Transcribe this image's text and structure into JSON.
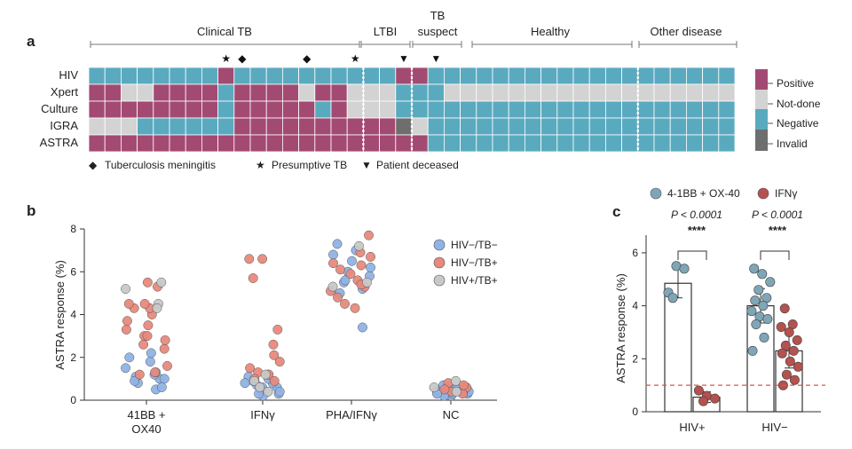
{
  "colors": {
    "positive": "#a34a73",
    "not_done": "#d3d3d3",
    "negative": "#5aaabf",
    "invalid": "#6e6e6e",
    "hivneg_tbneg": "#8fb3e6",
    "hivneg_tbpos": "#e8897c",
    "hivpos_tbpos": "#c8c8c8",
    "c_obx": "#7fa6b6",
    "c_ifn": "#b5514f",
    "threshold": "#d9574a"
  },
  "panel_a": {
    "letter": "a",
    "groups": [
      {
        "label": "Clinical TB"
      },
      {
        "label": "LTBI"
      },
      {
        "label": "TB"
      },
      {
        "label": "Healthy"
      },
      {
        "label": "Other disease"
      }
    ],
    "group_label_tb_second_line": "suspect",
    "row_labels": [
      "HIV",
      "Xpert",
      "Culture",
      "IGRA",
      "ASTRA"
    ],
    "legend": [
      {
        "key": "P",
        "label": "Positive"
      },
      {
        "key": "N",
        "label": "Not-done"
      },
      {
        "key": "G",
        "label": "Negative"
      },
      {
        "key": "I",
        "label": "Invalid"
      }
    ],
    "symbol_legend": [
      {
        "glyph": "◆",
        "label": "Tuberculosis meningitis"
      },
      {
        "glyph": "★",
        "label": "Presumptive TB"
      },
      {
        "glyph": "▼",
        "label": "Patient deceased"
      }
    ],
    "markers": [
      {
        "glyph": "★",
        "column": 8
      },
      {
        "glyph": "◆",
        "column": 9
      },
      {
        "glyph": "◆",
        "column": 13
      },
      {
        "glyph": "★",
        "column": 16
      },
      {
        "glyph": "▼",
        "column": 19
      },
      {
        "glyph": "▼",
        "column": 21
      }
    ],
    "matrix": [
      "GGGGGGGGPGGGGGGGGGGPPGGGGGGGGGGGGGGGGGGG",
      "PPNNPPPPGPPPPNPPNNNGGGNNNNNNNNNNNNNNNNNN",
      "PPPPPPPPGPPPPPGPNNNGGGGGGGGGGGGGGGGGGGGG",
      "NNNGGGGGGPPPPPPPPPPINGGGGGGGGGGGGGGGGGGG",
      "PPPPPPPPPPPPPPPPPPPPPGGGGGGGGGGGGGGGGGGG"
    ]
  },
  "panel_b": {
    "letter": "b",
    "chart_data": {
      "type": "scatter",
      "title": "",
      "ylabel": "ASTRA response (%)",
      "ylim": [
        0,
        8
      ],
      "yticks": [
        "0",
        "2",
        "4",
        "6",
        "8"
      ],
      "categories": [
        "41BB +|OX40",
        "IFNγ",
        "PHA/IFNγ",
        "NC"
      ],
      "legend": [
        {
          "key": "hivneg_tbneg",
          "label": "HIV−/TB−"
        },
        {
          "key": "hivneg_tbpos",
          "label": "HIV−/TB+"
        },
        {
          "key": "hivpos_tbpos",
          "label": "HIV+/TB+"
        }
      ],
      "series": [
        {
          "name": "HIV−/TB−",
          "key": "hivneg_tbneg",
          "points": [
            [
              0,
              0.5
            ],
            [
              0,
              0.8
            ],
            [
              0,
              1.0
            ],
            [
              0,
              1.1
            ],
            [
              0,
              1.2
            ],
            [
              0,
              1.0
            ],
            [
              0,
              0.9
            ],
            [
              0,
              1.5
            ],
            [
              0,
              1.8
            ],
            [
              0,
              2.0
            ],
            [
              0,
              2.2
            ],
            [
              0,
              0.6
            ],
            [
              0,
              1.3
            ],
            [
              1,
              0.2
            ],
            [
              1,
              0.3
            ],
            [
              1,
              0.5
            ],
            [
              1,
              0.6
            ],
            [
              1,
              0.7
            ],
            [
              1,
              0.8
            ],
            [
              1,
              0.9
            ],
            [
              1,
              1.0
            ],
            [
              1,
              1.1
            ],
            [
              1,
              0.4
            ],
            [
              1,
              0.6
            ],
            [
              1,
              0.8
            ],
            [
              1,
              1.2
            ],
            [
              1,
              0.3
            ],
            [
              2,
              3.4
            ],
            [
              2,
              5.0
            ],
            [
              2,
              5.2
            ],
            [
              2,
              5.5
            ],
            [
              2,
              5.8
            ],
            [
              2,
              6.0
            ],
            [
              2,
              6.2
            ],
            [
              2,
              6.5
            ],
            [
              2,
              6.8
            ],
            [
              2,
              7.0
            ],
            [
              2,
              7.3
            ],
            [
              2,
              5.6
            ],
            [
              3,
              0.2
            ],
            [
              3,
              0.3
            ],
            [
              3,
              0.3
            ],
            [
              3,
              0.4
            ],
            [
              3,
              0.4
            ],
            [
              3,
              0.5
            ],
            [
              3,
              0.5
            ],
            [
              3,
              0.6
            ],
            [
              3,
              0.3
            ],
            [
              3,
              0.4
            ],
            [
              3,
              0.5
            ],
            [
              3,
              0.6
            ],
            [
              3,
              0.7
            ],
            [
              3,
              0.2
            ],
            [
              3,
              0.4
            ],
            [
              3,
              0.3
            ],
            [
              3,
              0.5
            ]
          ]
        },
        {
          "name": "HIV−/TB+",
          "key": "hivneg_tbpos",
          "points": [
            [
              0,
              1.2
            ],
            [
              0,
              1.6
            ],
            [
              0,
              2.4
            ],
            [
              0,
              2.6
            ],
            [
              0,
              2.8
            ],
            [
              0,
              3.0
            ],
            [
              0,
              3.3
            ],
            [
              0,
              3.5
            ],
            [
              0,
              3.7
            ],
            [
              0,
              4.0
            ],
            [
              0,
              4.3
            ],
            [
              0,
              4.3
            ],
            [
              0,
              4.5
            ],
            [
              0,
              4.5
            ],
            [
              0,
              5.5
            ],
            [
              0,
              5.3
            ],
            [
              0,
              3.0
            ],
            [
              0,
              1.3
            ],
            [
              1,
              6.6
            ],
            [
              1,
              6.6
            ],
            [
              1,
              5.7
            ],
            [
              1,
              3.3
            ],
            [
              1,
              2.6
            ],
            [
              1,
              2.1
            ],
            [
              1,
              1.8
            ],
            [
              1,
              1.5
            ],
            [
              1,
              1.3
            ],
            [
              1,
              1.2
            ],
            [
              1,
              0.9
            ],
            [
              1,
              1.0
            ],
            [
              2,
              7.7
            ],
            [
              2,
              6.9
            ],
            [
              2,
              6.7
            ],
            [
              2,
              6.4
            ],
            [
              2,
              6.1
            ],
            [
              2,
              5.9
            ],
            [
              2,
              5.6
            ],
            [
              2,
              5.3
            ],
            [
              2,
              5.1
            ],
            [
              2,
              4.8
            ],
            [
              2,
              4.5
            ],
            [
              2,
              4.3
            ],
            [
              2,
              5.4
            ],
            [
              2,
              6.3
            ],
            [
              3,
              0.6
            ],
            [
              3,
              0.8
            ],
            [
              3,
              0.4
            ],
            [
              3,
              0.3
            ],
            [
              3,
              0.5
            ],
            [
              3,
              0.7
            ]
          ]
        },
        {
          "name": "HIV+/TB+",
          "key": "hivpos_tbpos",
          "points": [
            [
              0,
              4.5
            ],
            [
              0,
              5.5
            ],
            [
              0,
              5.2
            ],
            [
              0,
              4.3
            ],
            [
              1,
              0.9
            ],
            [
              1,
              0.6
            ],
            [
              1,
              0.4
            ],
            [
              1,
              1.2
            ],
            [
              2,
              7.2
            ],
            [
              2,
              5.5
            ],
            [
              2,
              5.3
            ],
            [
              3,
              0.6
            ],
            [
              3,
              0.9
            ],
            [
              3,
              0.4
            ]
          ]
        }
      ]
    }
  },
  "panel_c": {
    "letter": "c",
    "chart_data": {
      "type": "bar",
      "title": "",
      "ylabel": "ASTRA response (%)",
      "ylim": [
        0,
        6.5
      ],
      "yticks": [
        "0",
        "2",
        "4",
        "6"
      ],
      "categories": [
        "HIV+",
        "HIV−"
      ],
      "threshold": 1.0,
      "legend": [
        {
          "key": "c_obx",
          "label": "4-1BB + OX-40"
        },
        {
          "key": "c_ifn",
          "label": "IFNγ"
        }
      ],
      "pvalues": [
        {
          "label": "P < 0.0001",
          "stars": "****"
        },
        {
          "label": "P < 0.0001",
          "stars": "****"
        }
      ],
      "series": [
        {
          "name": "4-1BB + OX-40",
          "key": "c_obx",
          "means": [
            4.85,
            4.0
          ],
          "err": [
            0.55,
            0.65
          ],
          "points": [
            [
              4.5,
              5.5,
              5.4,
              4.3
            ],
            [
              5.4,
              5.2,
              4.9,
              4.6,
              4.3,
              4.2,
              4.0,
              3.8,
              3.6,
              3.5,
              3.3,
              2.8,
              2.3
            ]
          ]
        },
        {
          "name": "IFNγ",
          "key": "c_ifn",
          "means": [
            0.55,
            2.3
          ],
          "err": [
            0.2,
            0.65
          ],
          "points": [
            [
              0.8,
              0.6,
              0.5,
              0.4
            ],
            [
              3.9,
              3.3,
              3.2,
              3.0,
              2.7,
              2.5,
              2.3,
              2.2,
              1.9,
              1.7,
              1.4,
              1.2,
              1.0
            ]
          ]
        }
      ]
    }
  }
}
